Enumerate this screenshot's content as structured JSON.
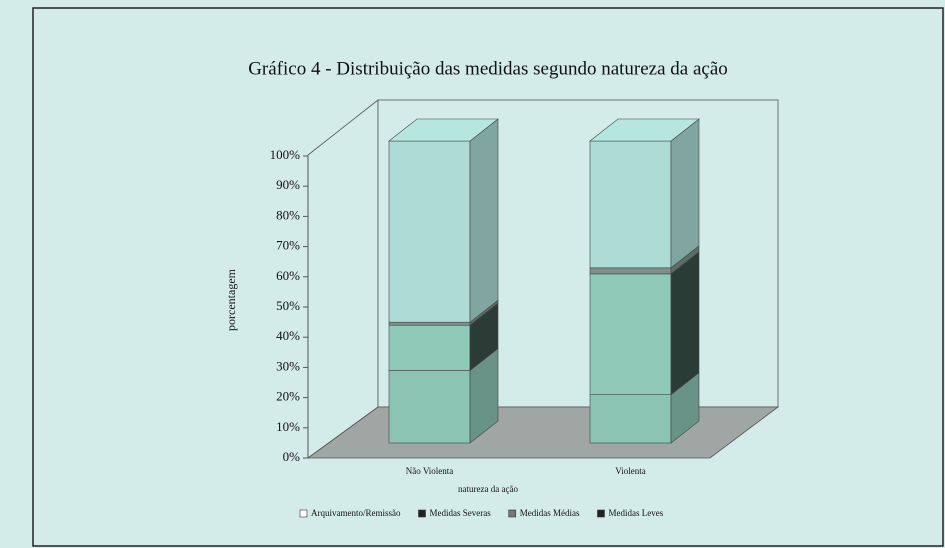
{
  "chart_data": {
    "type": "bar3d_stacked",
    "title": "Gráfico 4 - Distribuição das medidas segundo natureza da ação",
    "x_label": "natureza da ação",
    "y_label": "porcentagem",
    "categories": [
      "Não Violenta",
      "Violenta"
    ],
    "series": [
      {
        "name": "Medidas Leves",
        "color": "#8cc4b4",
        "values": [
          24,
          16
        ]
      },
      {
        "name": "Medidas Médias",
        "color": "#8fc9b8",
        "values": [
          15,
          40
        ]
      },
      {
        "name": "Medidas Severas",
        "color": "#7d908a",
        "values": [
          1,
          2
        ]
      },
      {
        "name": "Arquivamento/Remissão",
        "color": "#acdcd5",
        "values": [
          60,
          42
        ]
      }
    ],
    "legend_order": [
      3,
      2,
      1,
      0
    ],
    "ylim": [
      0,
      100
    ],
    "yticks": [
      {
        "value": 0,
        "label": "0%"
      },
      {
        "value": 10,
        "label": "10%"
      },
      {
        "value": 20,
        "label": "20%"
      },
      {
        "value": 30,
        "label": "30%"
      },
      {
        "value": 40,
        "label": "40%"
      },
      {
        "value": 50,
        "label": "50%"
      },
      {
        "value": 60,
        "label": "60%"
      },
      {
        "value": 70,
        "label": "70%"
      },
      {
        "value": 80,
        "label": "80%"
      },
      {
        "value": 90,
        "label": "90%"
      },
      {
        "value": 100,
        "label": "100%"
      }
    ]
  }
}
